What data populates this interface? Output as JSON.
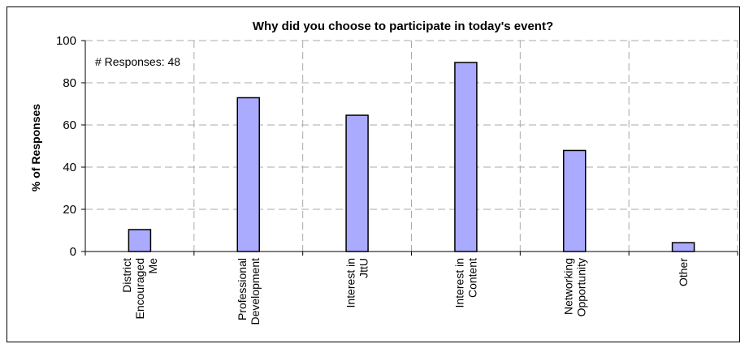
{
  "chart_data": {
    "type": "bar",
    "title": "Why did you choose to participate in today's event?",
    "ylabel": "% of Responses",
    "xlabel": "",
    "categories": [
      [
        "District",
        "Encouraged",
        "Me"
      ],
      [
        "Professional",
        "Development"
      ],
      [
        "Interest in",
        "JttU"
      ],
      [
        "Interest in",
        "Content"
      ],
      [
        "Networking",
        "Opportunity"
      ],
      [
        "Other"
      ]
    ],
    "values": [
      10.4,
      72.9,
      64.6,
      89.6,
      47.9,
      4.2
    ],
    "ylim": [
      0,
      100
    ],
    "yticks": [
      "0",
      "20",
      "40",
      "60",
      "80",
      "100"
    ],
    "annotation": "# Responses: 48",
    "grid": true,
    "legend": "none",
    "bar_color": "#aaaaff"
  }
}
